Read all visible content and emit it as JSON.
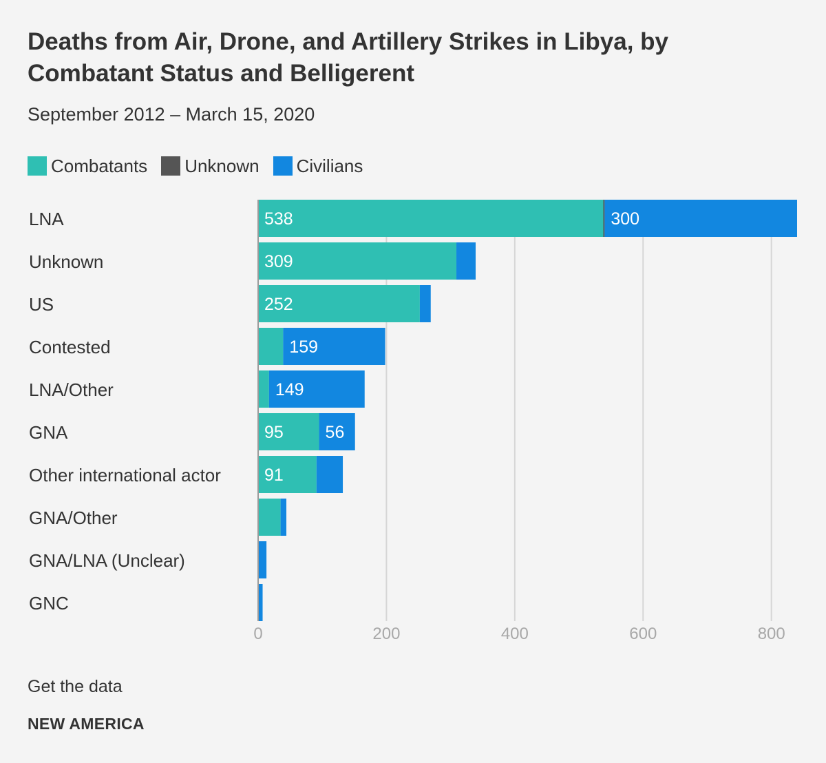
{
  "header": {
    "title": "Deaths from Air, Drone, and Artillery Strikes in Libya, by Combatant Status and Belligerent",
    "subtitle": "September 2012 – March 15, 2020"
  },
  "legend": [
    {
      "label": "Combatants",
      "color": "#2fbfb3"
    },
    {
      "label": "Unknown",
      "color": "#555555"
    },
    {
      "label": "Civilians",
      "color": "#1287e0"
    }
  ],
  "footer": {
    "get_data": "Get the data",
    "source": "NEW AMERICA"
  },
  "chart_data": {
    "type": "bar",
    "orientation": "horizontal",
    "stacked": true,
    "title": "Deaths from Air, Drone, and Artillery Strikes in Libya, by Combatant Status and Belligerent",
    "subtitle": "September 2012 – March 15, 2020",
    "xlabel": "",
    "ylabel": "",
    "xlim": [
      0,
      840
    ],
    "ticks": [
      0,
      200,
      400,
      600,
      800
    ],
    "tick_labels": [
      "0",
      "200",
      "400",
      "600",
      "800"
    ],
    "grid": true,
    "legend_position": "top-left",
    "categories": [
      "LNA",
      "Unknown",
      "US",
      "Contested",
      "LNA/Other",
      "GNA",
      "Other international actor",
      "GNA/Other",
      "GNA/LNA (Unclear)",
      "GNC"
    ],
    "series": [
      {
        "name": "Combatants",
        "color": "#2fbfb3",
        "values": [
          538,
          309,
          252,
          39,
          17,
          95,
          91,
          35,
          1,
          1
        ],
        "labels": [
          "538",
          "309",
          "252",
          "",
          "",
          "95",
          "91",
          "",
          "",
          ""
        ]
      },
      {
        "name": "Unknown",
        "color": "#555555",
        "values": [
          2,
          0,
          0,
          0,
          0,
          0,
          0,
          0,
          0,
          0
        ],
        "labels": [
          "",
          "",
          "",
          "",
          "",
          "",
          "",
          "",
          "",
          ""
        ]
      },
      {
        "name": "Civilians",
        "color": "#1287e0",
        "values": [
          300,
          30,
          17,
          159,
          149,
          56,
          41,
          9,
          12,
          6
        ],
        "labels": [
          "300",
          "",
          "",
          "159",
          "149",
          "56",
          "",
          "",
          "",
          ""
        ]
      }
    ]
  }
}
